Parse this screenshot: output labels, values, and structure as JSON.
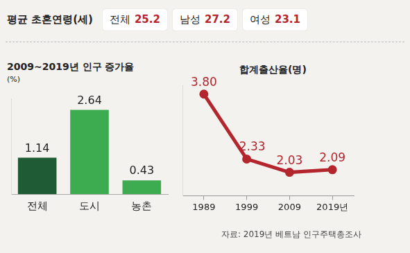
{
  "header": {
    "title": "평균 초혼연령(세)",
    "items": [
      {
        "label": "전체",
        "value": 25.2
      },
      {
        "label": "남성",
        "value": 27.2
      },
      {
        "label": "여성",
        "value": 23.1
      }
    ]
  },
  "chart_data": [
    {
      "type": "bar",
      "title": "2009~2019년 인구 증가율",
      "subtitle": "(%)",
      "categories": [
        "전체",
        "도시",
        "농촌"
      ],
      "values": [
        1.14,
        2.64,
        0.43
      ],
      "colors": [
        "#1f5b35",
        "#3dab4f",
        "#3dab4f"
      ],
      "ylim": [
        0,
        3
      ],
      "data_labels": true,
      "tick_labels": "x",
      "grid": false
    },
    {
      "type": "line",
      "title": "합계출산율(명)",
      "categories": [
        "1989",
        "1999",
        "2009",
        "2019년"
      ],
      "values": [
        3.8,
        2.33,
        2.03,
        2.09
      ],
      "value_labels": [
        "3.80",
        "2.33",
        "2.03",
        "2.09"
      ],
      "color": "#b3262e",
      "ylim": [
        1.5,
        4
      ],
      "data_labels": true,
      "tick_labels": "x",
      "grid": false,
      "marker": "circle"
    }
  ],
  "source": "자료: 2019년 베트남 인구주택총조사"
}
